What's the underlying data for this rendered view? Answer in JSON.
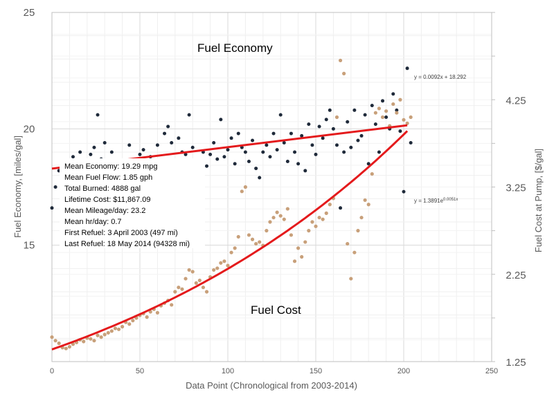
{
  "chart_data": {
    "type": "scatter",
    "title": "",
    "xlabel": "Data Point (Chronological from 2003-2014)",
    "ylabel_left": "Fuel Economy, [miles/gal]",
    "ylabel_right": "Fuel Cost at Pump, [$/gal]",
    "xlim": [
      0,
      250
    ],
    "x_ticks": [
      "0",
      "50",
      "100",
      "150",
      "200",
      "250"
    ],
    "ylim_left": [
      10,
      25
    ],
    "y_left_ticks": [
      "15",
      "20",
      "25"
    ],
    "ylim_right": [
      1.25,
      5.25
    ],
    "y_right_ticks": [
      "1.25",
      "2.25",
      "3.25",
      "4.25"
    ],
    "grid": true,
    "annotations": {
      "economy_label": "Fuel Economy",
      "cost_label": "Fuel Cost"
    },
    "stats": [
      "Mean Economy: 19.29  mpg",
      "Mean Fuel Flow: 1.85 gph",
      "Total Burned: 4888  gal",
      "Lifetime Cost: $11,867.09",
      "Mean Mileage/day: 23.2",
      "Mean hr/day: 0.7",
      "First Refuel: 3 April 2003  (497 mi)",
      "Last Refuel: 18 May 2014  (94328  mi)"
    ],
    "series": [
      {
        "name": "Fuel Economy",
        "axis": "left",
        "color": "#1f2a3a",
        "trendline": {
          "type": "linear",
          "slope": 0.0092,
          "intercept": 18.292,
          "equation": "y = 0.0092x + 18.292"
        },
        "points": [
          [
            0,
            16.6
          ],
          [
            2,
            17.5
          ],
          [
            4,
            18.2
          ],
          [
            6,
            18.6
          ],
          [
            8,
            18.0
          ],
          [
            10,
            18.3
          ],
          [
            12,
            18.8
          ],
          [
            14,
            18.1
          ],
          [
            16,
            19.0
          ],
          [
            18,
            18.4
          ],
          [
            20,
            17.2
          ],
          [
            22,
            18.9
          ],
          [
            24,
            19.2
          ],
          [
            26,
            20.6
          ],
          [
            28,
            18.7
          ],
          [
            30,
            19.4
          ],
          [
            32,
            18.2
          ],
          [
            34,
            19.0
          ],
          [
            36,
            17.8
          ],
          [
            38,
            18.5
          ],
          [
            40,
            17.2
          ],
          [
            42,
            18.0
          ],
          [
            44,
            19.3
          ],
          [
            46,
            17.3
          ],
          [
            48,
            18.6
          ],
          [
            50,
            18.9
          ],
          [
            52,
            19.1
          ],
          [
            54,
            18.4
          ],
          [
            56,
            18.8
          ],
          [
            58,
            17.8
          ],
          [
            60,
            19.3
          ],
          [
            62,
            18.6
          ],
          [
            64,
            19.8
          ],
          [
            66,
            20.1
          ],
          [
            68,
            19.4
          ],
          [
            70,
            18.3
          ],
          [
            72,
            19.6
          ],
          [
            74,
            19.0
          ],
          [
            76,
            18.9
          ],
          [
            78,
            20.6
          ],
          [
            80,
            19.2
          ],
          [
            82,
            18.5
          ],
          [
            84,
            16.8
          ],
          [
            86,
            19.0
          ],
          [
            88,
            18.4
          ],
          [
            90,
            18.9
          ],
          [
            92,
            19.4
          ],
          [
            94,
            18.7
          ],
          [
            96,
            20.4
          ],
          [
            98,
            18.8
          ],
          [
            100,
            19.1
          ],
          [
            102,
            19.6
          ],
          [
            104,
            18.5
          ],
          [
            106,
            19.8
          ],
          [
            108,
            19.2
          ],
          [
            110,
            19.0
          ],
          [
            112,
            18.6
          ],
          [
            114,
            19.5
          ],
          [
            116,
            18.3
          ],
          [
            118,
            17.9
          ],
          [
            120,
            19.0
          ],
          [
            122,
            19.3
          ],
          [
            124,
            18.8
          ],
          [
            126,
            19.8
          ],
          [
            128,
            19.1
          ],
          [
            130,
            20.6
          ],
          [
            132,
            19.4
          ],
          [
            134,
            18.6
          ],
          [
            136,
            19.8
          ],
          [
            138,
            19.0
          ],
          [
            140,
            18.5
          ],
          [
            142,
            19.7
          ],
          [
            144,
            18.2
          ],
          [
            146,
            20.2
          ],
          [
            148,
            19.3
          ],
          [
            150,
            18.9
          ],
          [
            152,
            20.1
          ],
          [
            154,
            19.6
          ],
          [
            156,
            20.4
          ],
          [
            158,
            20.8
          ],
          [
            160,
            20.0
          ],
          [
            162,
            19.3
          ],
          [
            164,
            16.6
          ],
          [
            166,
            19.0
          ],
          [
            168,
            20.3
          ],
          [
            170,
            19.2
          ],
          [
            172,
            20.8
          ],
          [
            174,
            19.5
          ],
          [
            176,
            19.7
          ],
          [
            178,
            20.6
          ],
          [
            180,
            18.5
          ],
          [
            182,
            21.0
          ],
          [
            184,
            20.2
          ],
          [
            186,
            19.0
          ],
          [
            188,
            21.2
          ],
          [
            190,
            20.5
          ],
          [
            192,
            20.0
          ],
          [
            194,
            21.5
          ],
          [
            196,
            20.8
          ],
          [
            198,
            19.9
          ],
          [
            200,
            17.3
          ],
          [
            202,
            22.6
          ],
          [
            204,
            19.4
          ]
        ]
      },
      {
        "name": "Fuel Cost",
        "axis": "right",
        "color": "#c8a07a",
        "trendline": {
          "type": "exponential",
          "a": 1.3891,
          "b": 0.0051,
          "equation": "y = 1.3891e0.0051x"
        },
        "points": [
          [
            0,
            1.53
          ],
          [
            2,
            1.49
          ],
          [
            4,
            1.46
          ],
          [
            6,
            1.41
          ],
          [
            8,
            1.4
          ],
          [
            10,
            1.42
          ],
          [
            12,
            1.45
          ],
          [
            14,
            1.47
          ],
          [
            16,
            1.5
          ],
          [
            18,
            1.48
          ],
          [
            20,
            1.52
          ],
          [
            22,
            1.51
          ],
          [
            24,
            1.49
          ],
          [
            26,
            1.55
          ],
          [
            28,
            1.53
          ],
          [
            30,
            1.56
          ],
          [
            32,
            1.58
          ],
          [
            34,
            1.6
          ],
          [
            36,
            1.63
          ],
          [
            38,
            1.62
          ],
          [
            40,
            1.65
          ],
          [
            42,
            1.7
          ],
          [
            44,
            1.68
          ],
          [
            46,
            1.72
          ],
          [
            48,
            1.75
          ],
          [
            50,
            1.78
          ],
          [
            52,
            1.8
          ],
          [
            54,
            1.76
          ],
          [
            56,
            1.82
          ],
          [
            58,
            1.85
          ],
          [
            60,
            1.81
          ],
          [
            62,
            1.89
          ],
          [
            64,
            1.92
          ],
          [
            66,
            1.95
          ],
          [
            68,
            1.9
          ],
          [
            70,
            2.05
          ],
          [
            72,
            2.1
          ],
          [
            74,
            2.08
          ],
          [
            76,
            2.2
          ],
          [
            78,
            2.3
          ],
          [
            80,
            2.28
          ],
          [
            82,
            2.15
          ],
          [
            84,
            2.18
          ],
          [
            86,
            2.1
          ],
          [
            88,
            2.05
          ],
          [
            90,
            2.22
          ],
          [
            92,
            2.3
          ],
          [
            94,
            2.32
          ],
          [
            96,
            2.38
          ],
          [
            98,
            2.4
          ],
          [
            100,
            2.35
          ],
          [
            102,
            2.5
          ],
          [
            104,
            2.55
          ],
          [
            106,
            2.68
          ],
          [
            108,
            3.2
          ],
          [
            110,
            3.25
          ],
          [
            112,
            2.7
          ],
          [
            114,
            2.65
          ],
          [
            116,
            2.6
          ],
          [
            118,
            2.62
          ],
          [
            120,
            2.58
          ],
          [
            122,
            2.75
          ],
          [
            124,
            2.85
          ],
          [
            126,
            2.9
          ],
          [
            128,
            2.96
          ],
          [
            130,
            2.92
          ],
          [
            132,
            2.88
          ],
          [
            134,
            3.0
          ],
          [
            136,
            2.7
          ],
          [
            138,
            2.4
          ],
          [
            140,
            2.55
          ],
          [
            142,
            2.45
          ],
          [
            144,
            2.62
          ],
          [
            146,
            2.75
          ],
          [
            148,
            2.85
          ],
          [
            150,
            2.8
          ],
          [
            152,
            2.9
          ],
          [
            154,
            2.88
          ],
          [
            156,
            2.95
          ],
          [
            158,
            3.05
          ],
          [
            160,
            3.12
          ],
          [
            162,
            4.05
          ],
          [
            164,
            4.7
          ],
          [
            166,
            4.55
          ],
          [
            168,
            2.6
          ],
          [
            170,
            2.2
          ],
          [
            172,
            2.5
          ],
          [
            174,
            2.75
          ],
          [
            176,
            2.9
          ],
          [
            178,
            3.1
          ],
          [
            180,
            3.05
          ],
          [
            182,
            3.4
          ],
          [
            184,
            4.1
          ],
          [
            186,
            4.15
          ],
          [
            188,
            4.05
          ],
          [
            190,
            4.12
          ],
          [
            192,
            3.95
          ],
          [
            194,
            4.2
          ],
          [
            196,
            4.1
          ],
          [
            198,
            4.25
          ],
          [
            200,
            4.02
          ],
          [
            202,
            3.98
          ],
          [
            204,
            4.05
          ]
        ]
      }
    ]
  }
}
